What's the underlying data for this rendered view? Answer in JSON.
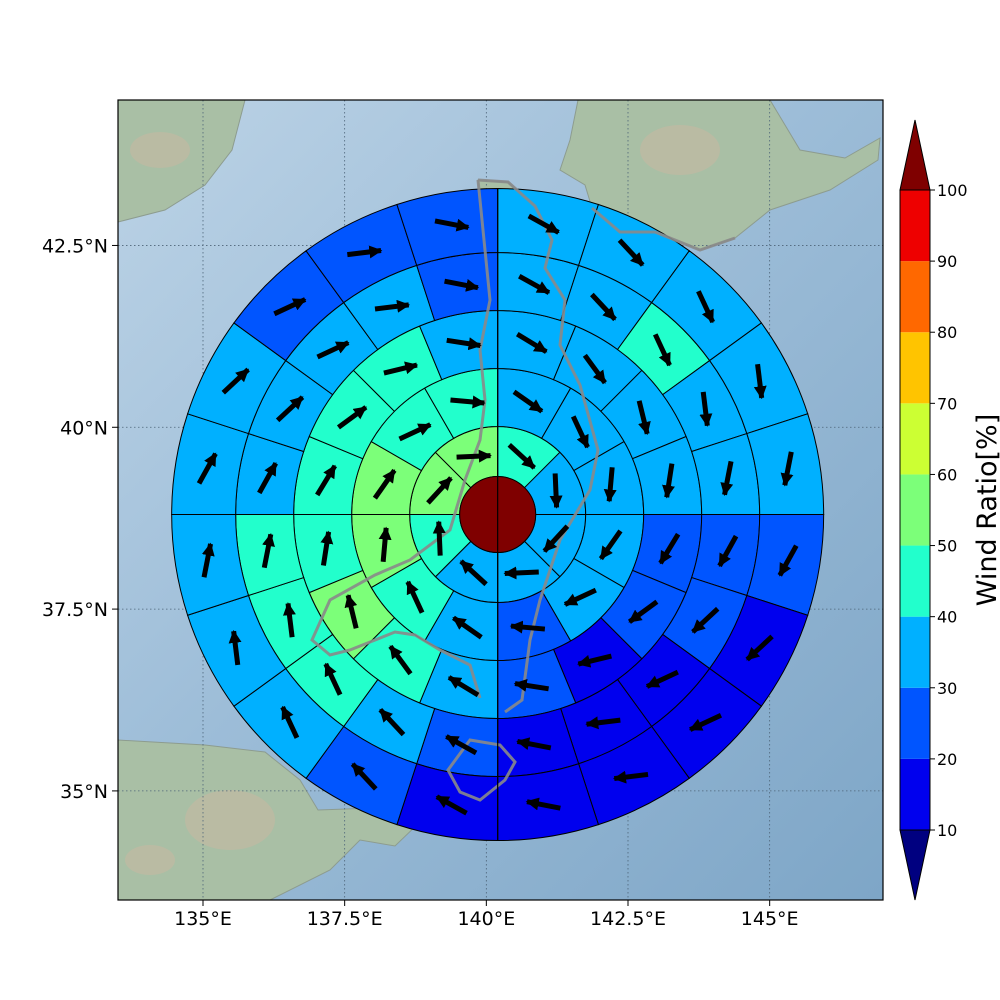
{
  "map": {
    "lon_range": [
      133.5,
      147.0
    ],
    "lat_range": [
      33.5,
      44.5
    ],
    "center": {
      "lon": 140.2,
      "lat": 38.8
    },
    "x_ticks": [
      {
        "value": 135,
        "label": "135°E"
      },
      {
        "value": 137.5,
        "label": "137.5°E"
      },
      {
        "value": 140,
        "label": "140°E"
      },
      {
        "value": 142.5,
        "label": "142.5°E"
      },
      {
        "value": 145,
        "label": "145°E"
      }
    ],
    "y_ticks": [
      {
        "value": 35,
        "label": "35°N"
      },
      {
        "value": 37.5,
        "label": "37.5°N"
      },
      {
        "value": 40,
        "label": "40°N"
      },
      {
        "value": 42.5,
        "label": "42.5°N"
      }
    ],
    "gridlines": true,
    "background": "shaded-relief",
    "center_value_color": "#7f0000"
  },
  "colorbar": {
    "label": "Wind Ratio[%]",
    "ticks": [
      10,
      20,
      30,
      40,
      50,
      60,
      70,
      80,
      90,
      100
    ],
    "extend": "both",
    "colors": [
      "#000080",
      "#0000ee",
      "#0055ff",
      "#00b0ff",
      "#22ffcc",
      "#7cff79",
      "#ccff33",
      "#ffc400",
      "#ff6800",
      "#ee0000",
      "#7f0000"
    ]
  },
  "rings": [
    {
      "name": "ring-1",
      "values": [
        45,
        35,
        35,
        35,
        35,
        45,
        55,
        55
      ]
    },
    {
      "name": "ring-2",
      "values": [
        35,
        35,
        35,
        35,
        35,
        25,
        35,
        45,
        55,
        55,
        45,
        45
      ]
    },
    {
      "name": "ring-3",
      "values": [
        35,
        35,
        35,
        35,
        25,
        25,
        15,
        25,
        35,
        45,
        55,
        45,
        45,
        45,
        45,
        35
      ]
    },
    {
      "name": "ring-4",
      "values": [
        35,
        35,
        45,
        35,
        35,
        25,
        25,
        15,
        15,
        15,
        25,
        35,
        45,
        45,
        45,
        35,
        35,
        35,
        35,
        25
      ]
    },
    {
      "name": "ring-5",
      "values": [
        35,
        35,
        35,
        35,
        35,
        25,
        15,
        15,
        15,
        15,
        15,
        25,
        35,
        35,
        35,
        35,
        35,
        25,
        25,
        25
      ]
    }
  ]
}
